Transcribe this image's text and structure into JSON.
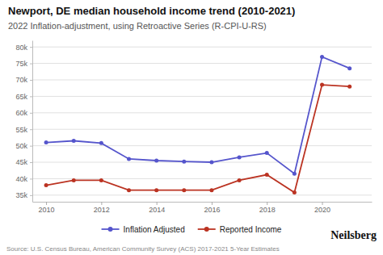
{
  "chart_data": {
    "type": "line",
    "title": "Newport, DE median household income trend (2010-2021)",
    "subtitle": "2022 Inflation-adjustment, using Retroactive Series (R-CPI-U-RS)",
    "annotations": [
      "Source: U.S. Census Bureau, American Community Survey (ACS) 2017-2021 5-Year Estimates",
      "Neilsberg"
    ],
    "x": [
      2010,
      2011,
      2012,
      2013,
      2014,
      2015,
      2016,
      2017,
      2018,
      2019,
      2020,
      2021
    ],
    "series": [
      {
        "name": "Inflation Adjusted",
        "color": "#5555cc",
        "marker": "circle",
        "values": [
          51000,
          51500,
          50800,
          46000,
          45500,
          45200,
          45000,
          46500,
          47800,
          41500,
          77000,
          73500
        ]
      },
      {
        "name": "Reported Income",
        "color": "#bb3322",
        "marker": "circle",
        "values": [
          38000,
          39500,
          39500,
          36500,
          36500,
          36500,
          36500,
          39500,
          41200,
          35800,
          68500,
          68000
        ]
      }
    ],
    "xlim": [
      2009.5,
      2021.8
    ],
    "xticks": [
      2010,
      2012,
      2014,
      2016,
      2018,
      2020
    ],
    "ylim": [
      33000,
      82000
    ],
    "yticks": [
      {
        "value": 35000,
        "label": "35k"
      },
      {
        "value": 40000,
        "label": "40k"
      },
      {
        "value": 45000,
        "label": "45k"
      },
      {
        "value": 50000,
        "label": "50k"
      },
      {
        "value": 55000,
        "label": "55k"
      },
      {
        "value": 60000,
        "label": "60k"
      },
      {
        "value": 65000,
        "label": "65k"
      },
      {
        "value": 70000,
        "label": "70k"
      },
      {
        "value": 75000,
        "label": "75k"
      },
      {
        "value": 80000,
        "label": "80k"
      }
    ],
    "grid": true,
    "legend": "bottom"
  }
}
